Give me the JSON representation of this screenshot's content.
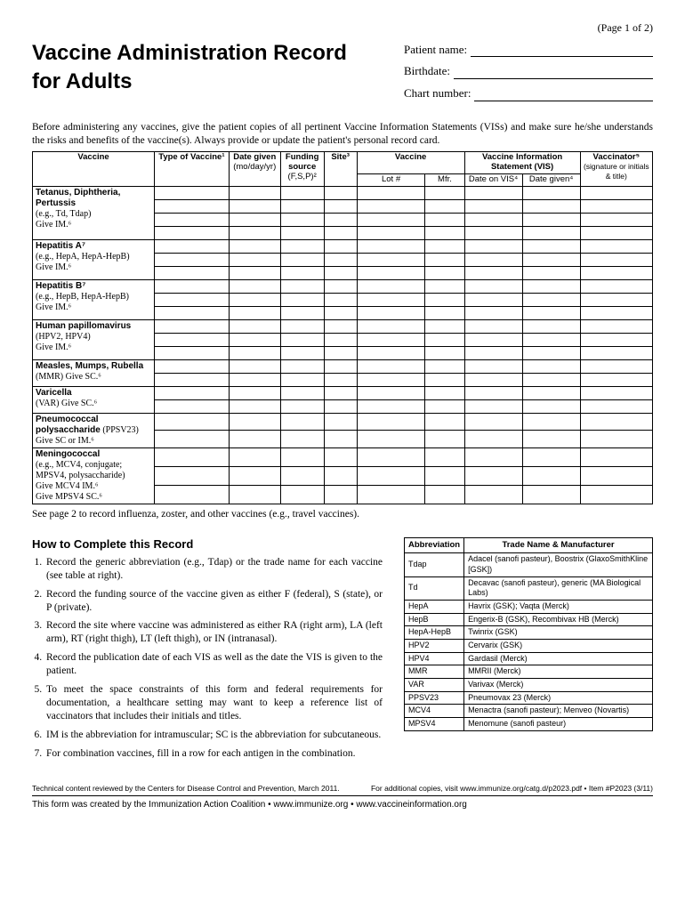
{
  "page_num": "(Page 1 of 2)",
  "title_l1": "Vaccine Administration Record",
  "title_l2": "for Adults",
  "patient": {
    "name_label": "Patient name:",
    "birth_label": "Birthdate:",
    "chart_label": "Chart number:"
  },
  "intro": "Before administering any vaccines, give the patient copies of all pertinent Vaccine Information Statements (VISs) and make sure he/she understands the risks and benefits of the vaccine(s). Always provide or update the patient's personal record card.",
  "main_headers": {
    "vaccine": "Vaccine",
    "type": "Type of Vaccine¹",
    "date_given": "Date given",
    "date_given_sub": "(mo/day/yr)",
    "funding": "Funding source",
    "funding_sub": "(F,S,P)²",
    "site": "Site³",
    "vaccine2": "Vaccine",
    "lot": "Lot #",
    "mfr": "Mfr.",
    "vis": "Vaccine Information Statement (VIS)",
    "date_on_vis": "Date on VIS⁴",
    "vis_date_given": "Date given⁴",
    "vaccinator": "Vaccinator⁵",
    "vaccinator_sub": "(signature or initials & title)"
  },
  "vaccines": [
    {
      "name": "Tetanus, Diphtheria, Pertussis",
      "detail": "(e.g., Td, Tdap)\nGive IM.⁶",
      "rows": 4
    },
    {
      "name": "Hepatitis A⁷",
      "detail": "(e.g., HepA, HepA-HepB)\nGive IM.⁶",
      "rows": 3
    },
    {
      "name": "Hepatitis B⁷",
      "detail": "(e.g., HepB, HepA-HepB)\nGive IM.⁶",
      "rows": 3
    },
    {
      "name": "Human papillomavirus",
      "detail": "(HPV2, HPV4)\nGive IM.⁶",
      "rows": 3
    },
    {
      "name": "Measles, Mumps, Rubella",
      "detail": "(MMR) Give SC.⁶",
      "rows": 2
    },
    {
      "name": "Varicella",
      "detail": "(VAR) Give SC.⁶",
      "rows": 2
    },
    {
      "name": "Pneumococcal polysaccharide",
      "detail_inline": " (PPSV23)",
      "detail": "Give SC or IM.⁶",
      "rows": 2
    },
    {
      "name": "Meningococcal",
      "detail": "(e.g., MCV4, conjugate; MPSV4, polysaccharide)\nGive MCV4 IM.⁶\nGive MPSV4 SC.⁶",
      "rows": 3
    }
  ],
  "see_page2": "See page 2 to record influenza, zoster, and other vaccines (e.g., travel vaccines).",
  "howto_title": "How to Complete this Record",
  "howto_items": [
    "Record the generic abbreviation (e.g., Tdap) or the trade name for each vaccine (see table at right).",
    "Record the funding source of the vaccine given as either F (federal), S (state), or P (private).",
    "Record the site where vaccine was administered as either RA (right arm), LA (left arm), RT (right thigh), LT (left thigh), or IN (intranasal).",
    "Record the publication date of each VIS as well as the date the VIS is given to the patient.",
    "To meet the space constraints of this form and federal requirements for documentation, a healthcare setting may want to keep a reference list of vaccinators that includes their initials and titles.",
    "IM is the abbreviation for intramuscular; SC is the abbreviation for subcutaneous.",
    "For combination vaccines, fill in a row for each antigen in the combination."
  ],
  "abbr_headers": {
    "abbr": "Abbreviation",
    "trade": "Trade Name & Manufacturer"
  },
  "abbr_rows": [
    [
      "Tdap",
      "Adacel (sanofi pasteur), Boostrix (GlaxoSmithKline [GSK])"
    ],
    [
      "Td",
      "Decavac (sanofi pasteur), generic (MA Biological Labs)"
    ],
    [
      "HepA",
      "Havrix (GSK); Vaqta (Merck)"
    ],
    [
      "HepB",
      "Engerix-B (GSK), Recombivax HB (Merck)"
    ],
    [
      "HepA-HepB",
      "Twinrix (GSK)"
    ],
    [
      "HPV2",
      "Cervarix (GSK)"
    ],
    [
      "HPV4",
      "Gardasil (Merck)"
    ],
    [
      "MMR",
      "MMRII (Merck)"
    ],
    [
      "VAR",
      "Varivax (Merck)"
    ],
    [
      "PPSV23",
      "Pneumovax 23 (Merck)"
    ],
    [
      "MCV4",
      "Menactra (sanofi pasteur); Menveo (Novartis)"
    ],
    [
      "MPSV4",
      "Menomune (sanofi pasteur)"
    ]
  ],
  "footer1_left": "Technical content reviewed by the Centers for Disease Control and Prevention, March 2011.",
  "footer1_right": "For additional copies, visit www.immunize.org/catg.d/p2023.pdf  •  Item #P2023 (3/11)",
  "footer2": "This form was created by the Immunization Action Coalition  •  www.immunize.org  •  www.vaccineinformation.org"
}
